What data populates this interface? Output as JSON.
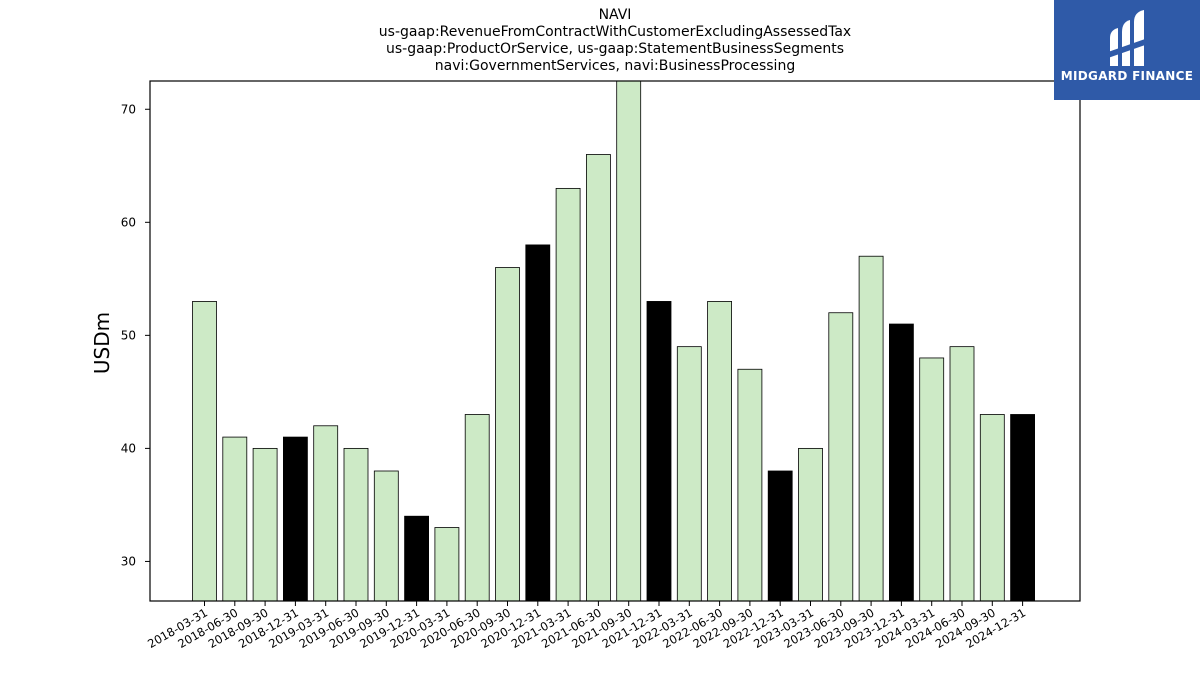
{
  "chart_data": {
    "type": "bar",
    "title_lines": [
      "NAVI",
      "us-gaap:RevenueFromContractWithCustomerExcludingAssessedTax",
      "us-gaap:ProductOrService, us-gaap:StatementBusinessSegments",
      "navi:GovernmentServices, navi:BusinessProcessing"
    ],
    "ylabel": "USDm",
    "xlabel": "",
    "ylim": [
      26.5,
      72.5
    ],
    "yticks": [
      30,
      40,
      50,
      60,
      70
    ],
    "grid": false,
    "categories": [
      "2018-03-31",
      "2018-06-30",
      "2018-09-30",
      "2018-12-31",
      "2019-03-31",
      "2019-06-30",
      "2019-09-30",
      "2019-12-31",
      "2020-03-31",
      "2020-06-30",
      "2020-09-30",
      "2020-12-31",
      "2021-03-31",
      "2021-06-30",
      "2021-09-30",
      "2021-12-31",
      "2022-03-31",
      "2022-06-30",
      "2022-09-30",
      "2022-12-31",
      "2023-03-31",
      "2023-06-30",
      "2023-09-30",
      "2023-12-31",
      "2024-03-31",
      "2024-06-30",
      "2024-09-30",
      "2024-12-31"
    ],
    "values": [
      53,
      41,
      40,
      41,
      42,
      40,
      38,
      34,
      33,
      43,
      56,
      58,
      63,
      66,
      73,
      53,
      49,
      53,
      47,
      38,
      40,
      52,
      57,
      51,
      48,
      49,
      43,
      43
    ],
    "colors": {
      "quarter": "#cdeac6",
      "year_end": "#000000",
      "edge": "#000000"
    }
  },
  "logo": {
    "text": "MIDGARD FINANCE",
    "background": "#2f5aa8"
  }
}
